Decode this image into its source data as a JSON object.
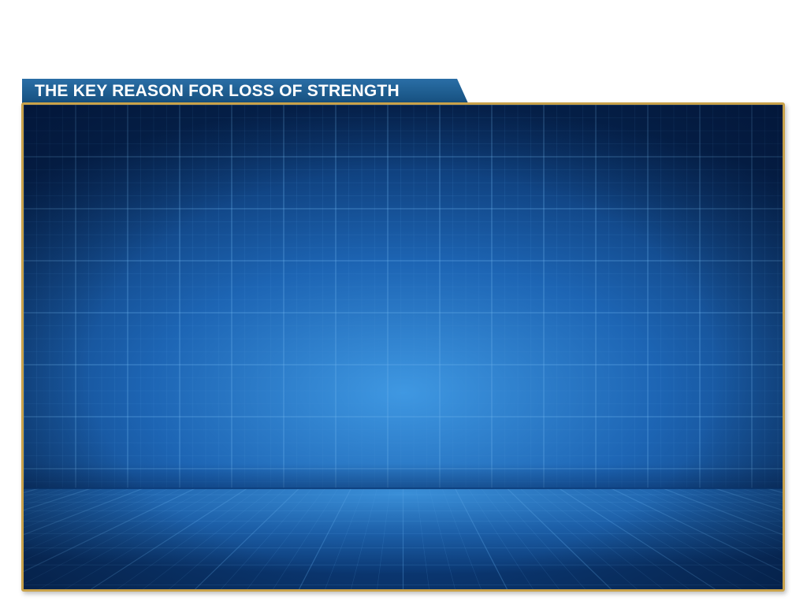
{
  "slide": {
    "title": "THE KEY REASON FOR LOSS OF STRENGTH"
  },
  "colors": {
    "banner": "#1b5c93",
    "frame_border": "#c9a24a",
    "panel_dark": "#06285a",
    "panel_light": "#3d95e0"
  }
}
